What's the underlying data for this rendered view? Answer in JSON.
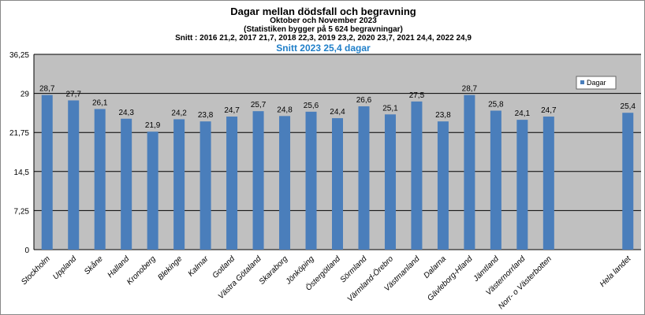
{
  "chart_data": {
    "type": "bar",
    "title": "Dagar mellan dödsfall och begravning",
    "subtitle1": "Oktober och November 2023",
    "subtitle2": "(Statistiken bygger på 5 624  begravningar)",
    "subtitle3": "Snitt : 2016 21,2,  2017 21,7,  2018 22,3, 2019 23,2, 2020 23,7, 2021 24,4, 2022 24,9",
    "subtitle4": "Snitt 2023 25,4 dagar",
    "categories": [
      "Stockholm",
      "Uppland",
      "Skåne",
      "Halland",
      "Kronoberg",
      "Blekinge",
      "Kalmar",
      "Gotland",
      "Västra Götaland",
      "Skaraborg",
      "Jönköping",
      "Östergötland",
      "Sörmland",
      "Värmland-Örebro",
      "Västmanland",
      "Dalarna",
      "Gävleborg-Hland",
      "Jämtland",
      "Västernorrland",
      "Norr- o Västerbotten",
      "",
      "Hela landet"
    ],
    "series": [
      {
        "name": "Dagar",
        "values": [
          28.7,
          27.7,
          26.1,
          24.3,
          21.9,
          24.2,
          23.8,
          24.7,
          25.7,
          24.8,
          25.6,
          24.4,
          26.6,
          25.1,
          27.5,
          23.8,
          28.7,
          25.8,
          24.1,
          24.7,
          null,
          25.4
        ],
        "labels": [
          "28,7",
          "27,7",
          "26,1",
          "24,3",
          "21,9",
          "24,2",
          "23,8",
          "24,7",
          "25,7",
          "24,8",
          "25,6",
          "24,4",
          "26,6",
          "25,1",
          "27,5",
          "23,8",
          "28,7",
          "25,8",
          "24,1",
          "24,7",
          "",
          "25,4"
        ]
      }
    ],
    "yticks": [
      "0",
      "7,25",
      "14,5",
      "21,75",
      "29",
      "36,25"
    ],
    "ylim": [
      0,
      36.25
    ],
    "grid": true,
    "legend": "top-right",
    "colors": {
      "bar": "#4a7ebb",
      "plot_bg": "#c0c0c0",
      "accent": "#1f7fc9"
    }
  }
}
